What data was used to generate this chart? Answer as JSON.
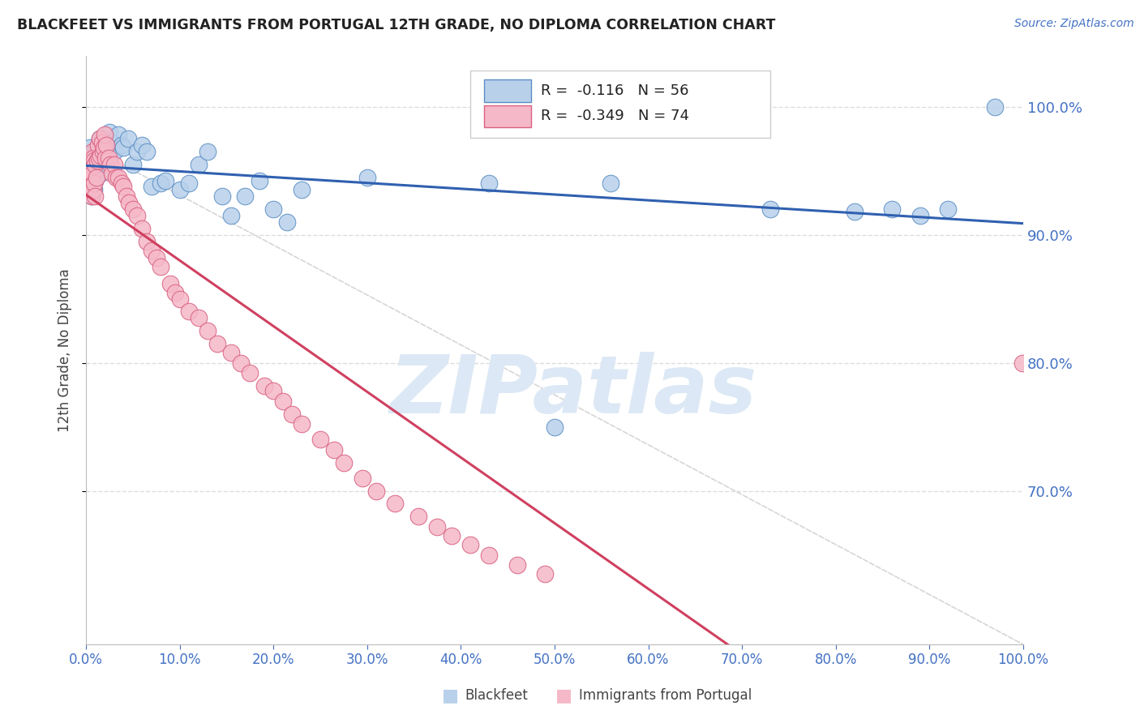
{
  "title": "BLACKFEET VS IMMIGRANTS FROM PORTUGAL 12TH GRADE, NO DIPLOMA CORRELATION CHART",
  "source": "Source: ZipAtlas.com",
  "ylabel": "12th Grade, No Diploma",
  "y_tick_labels": [
    "70.0%",
    "80.0%",
    "90.0%",
    "100.0%"
  ],
  "y_tick_values": [
    0.7,
    0.8,
    0.9,
    1.0
  ],
  "x_tick_values": [
    0.0,
    0.1,
    0.2,
    0.3,
    0.4,
    0.5,
    0.6,
    0.7,
    0.8,
    0.9,
    1.0
  ],
  "legend_entries": [
    {
      "label": "Blackfeet",
      "fill_color": "#b8d0ea",
      "edge_color": "#5b8ec4",
      "R": "-0.116",
      "N": "56"
    },
    {
      "label": "Immigrants from Portugal",
      "fill_color": "#f5b8c8",
      "edge_color": "#d96080",
      "R": "-0.349",
      "N": "74"
    }
  ],
  "blackfeet_x": [
    0.002,
    0.003,
    0.004,
    0.005,
    0.006,
    0.006,
    0.007,
    0.007,
    0.008,
    0.009,
    0.01,
    0.01,
    0.011,
    0.012,
    0.013,
    0.015,
    0.016,
    0.017,
    0.018,
    0.02,
    0.022,
    0.025,
    0.028,
    0.03,
    0.035,
    0.038,
    0.04,
    0.045,
    0.05,
    0.055,
    0.06,
    0.065,
    0.07,
    0.08,
    0.085,
    0.1,
    0.11,
    0.12,
    0.13,
    0.145,
    0.155,
    0.17,
    0.185,
    0.2,
    0.215,
    0.23,
    0.3,
    0.43,
    0.5,
    0.56,
    0.73,
    0.82,
    0.86,
    0.89,
    0.92,
    0.97
  ],
  "blackfeet_y": [
    0.96,
    0.955,
    0.968,
    0.962,
    0.93,
    0.95,
    0.938,
    0.945,
    0.96,
    0.935,
    0.942,
    0.965,
    0.95,
    0.955,
    0.958,
    0.975,
    0.948,
    0.962,
    0.96,
    0.968,
    0.975,
    0.98,
    0.972,
    0.965,
    0.978,
    0.97,
    0.968,
    0.975,
    0.955,
    0.965,
    0.97,
    0.965,
    0.938,
    0.94,
    0.942,
    0.935,
    0.94,
    0.955,
    0.965,
    0.93,
    0.915,
    0.93,
    0.942,
    0.92,
    0.91,
    0.935,
    0.945,
    0.94,
    0.75,
    0.94,
    0.92,
    0.918,
    0.92,
    0.915,
    0.92,
    1.0
  ],
  "portugal_x": [
    0.001,
    0.002,
    0.003,
    0.004,
    0.005,
    0.005,
    0.006,
    0.006,
    0.007,
    0.007,
    0.008,
    0.008,
    0.009,
    0.009,
    0.01,
    0.01,
    0.011,
    0.012,
    0.013,
    0.014,
    0.015,
    0.016,
    0.017,
    0.018,
    0.019,
    0.02,
    0.021,
    0.022,
    0.024,
    0.026,
    0.028,
    0.03,
    0.032,
    0.035,
    0.038,
    0.04,
    0.043,
    0.046,
    0.05,
    0.055,
    0.06,
    0.065,
    0.07,
    0.075,
    0.08,
    0.09,
    0.095,
    0.1,
    0.11,
    0.12,
    0.13,
    0.14,
    0.155,
    0.165,
    0.175,
    0.19,
    0.2,
    0.21,
    0.22,
    0.23,
    0.25,
    0.265,
    0.275,
    0.295,
    0.31,
    0.33,
    0.355,
    0.375,
    0.39,
    0.41,
    0.43,
    0.46,
    0.49,
    0.999
  ],
  "portugal_y": [
    0.935,
    0.95,
    0.94,
    0.945,
    0.938,
    0.96,
    0.93,
    0.955,
    0.948,
    0.965,
    0.935,
    0.96,
    0.94,
    0.958,
    0.93,
    0.955,
    0.945,
    0.958,
    0.97,
    0.96,
    0.975,
    0.962,
    0.972,
    0.965,
    0.968,
    0.978,
    0.96,
    0.97,
    0.96,
    0.955,
    0.948,
    0.955,
    0.945,
    0.945,
    0.94,
    0.938,
    0.93,
    0.925,
    0.92,
    0.915,
    0.905,
    0.895,
    0.888,
    0.882,
    0.875,
    0.862,
    0.855,
    0.85,
    0.84,
    0.835,
    0.825,
    0.815,
    0.808,
    0.8,
    0.792,
    0.782,
    0.778,
    0.77,
    0.76,
    0.752,
    0.74,
    0.732,
    0.722,
    0.71,
    0.7,
    0.69,
    0.68,
    0.672,
    0.665,
    0.658,
    0.65,
    0.642,
    0.635,
    0.8
  ],
  "blue_line_color": "#3060b0",
  "pink_line_color": "#d04060",
  "ref_line_color": "#cccccc",
  "background_color": "#ffffff",
  "grid_color": "#dddddd",
  "title_color": "#222222",
  "right_axis_color": "#4472c4",
  "x_label_color": "#4472c4",
  "watermark_text": "ZIPatlas",
  "watermark_color": "#dce8f5"
}
